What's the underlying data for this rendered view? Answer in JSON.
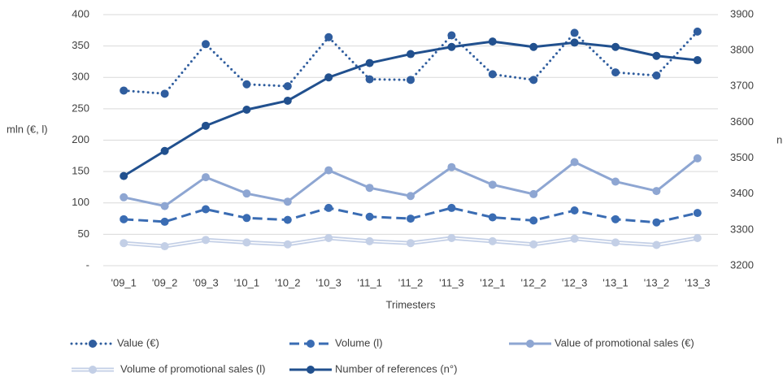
{
  "chart_data": {
    "type": "line",
    "categories": [
      "'09_1",
      "'09_2",
      "'09_3",
      "'10_1",
      "'10_2",
      "'10_3",
      "'11_1",
      "'11_2",
      "'11_3",
      "'12_1",
      "'12_2",
      "'12_3",
      "'13_1",
      "'13_2",
      "'13_3"
    ],
    "ylabel": "mln (€, l)",
    "y2label": "n",
    "xlabel": "Trimesters",
    "ylim": [
      0,
      400
    ],
    "yticks": [
      {
        "value": 0,
        "label": "-"
      },
      50,
      100,
      150,
      200,
      250,
      300,
      350,
      400
    ],
    "y2lim": [
      3200,
      3900
    ],
    "y2ticks": [
      3200,
      3300,
      3400,
      3500,
      3600,
      3700,
      3800,
      3900
    ],
    "grid": true,
    "legend": "bottom",
    "series": [
      {
        "name": "Value (€)",
        "color": "#2f5d9e",
        "style": "dotted",
        "values": [
          279,
          274,
          353,
          289,
          286,
          364,
          297,
          296,
          367,
          305,
          296,
          371,
          308,
          303,
          373
        ]
      },
      {
        "name": "Volume (l)",
        "color": "#3a6cb3",
        "style": "dashed",
        "values": [
          74,
          70,
          90,
          76,
          73,
          92,
          78,
          75,
          92,
          77,
          72,
          88,
          74,
          69,
          84
        ]
      },
      {
        "name": "Value of promotional sales (€)",
        "color": "#8ea6d2",
        "style": "solid",
        "values": [
          109,
          95,
          141,
          115,
          102,
          152,
          124,
          111,
          157,
          129,
          114,
          165,
          134,
          119,
          171
        ]
      },
      {
        "name": "Volume of promotional sales (l)",
        "color": "#c3cfe6",
        "style": "double",
        "values": [
          36,
          31,
          41,
          37,
          34,
          44,
          39,
          36,
          44,
          39,
          34,
          43,
          37,
          33,
          44
        ]
      },
      {
        "name": "Number of references (n°)",
        "color": "#21508e",
        "style": "solid",
        "axis": "y2",
        "values": [
          3450,
          3520,
          3590,
          3635,
          3660,
          3725,
          3765,
          3790,
          3810,
          3825,
          3810,
          3822,
          3810,
          3785,
          3773
        ]
      }
    ]
  }
}
